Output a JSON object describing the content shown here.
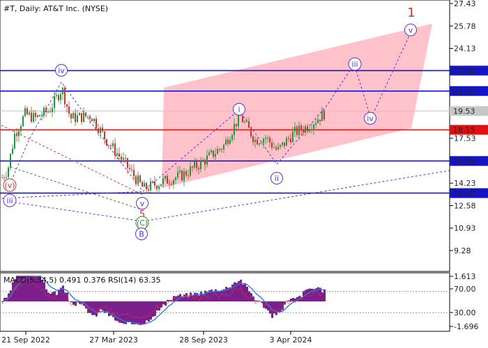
{
  "header": {
    "symbol_line": "#T, Daily:  AT&T Inc. (NYSE)",
    "indicator_line": "MACD(5,34,5) 0.491 0.376 RSI(14) 63.35"
  },
  "colors": {
    "bull_candle": "#1a9a3a",
    "bear_candle": "#c0392b",
    "channel_fill": "#ffb6c1",
    "level_blue": "#1515c8",
    "level_red": "#e01010",
    "wave_purple": "#5b2fd8",
    "wave_red": "#c0392b",
    "wave_green": "#2e8b2e",
    "macd_hist": "#7b1f8b",
    "macd_signal": "#2a7de1",
    "rsi_line": "#e03a3a"
  },
  "chart_data": {
    "type": "candlestick",
    "title": "#T, Daily:  AT&T Inc. (NYSE)",
    "price_axis": {
      "ticks": [
        "27.43",
        "25.78",
        "24.13",
        "17.53",
        "14.23",
        "12.58",
        "10.93",
        "9.28"
      ],
      "range": [
        7.8,
        28.2
      ]
    },
    "time_axis": {
      "ticks": [
        "21 Sep 2022",
        "27 Mar 2023",
        "28 Sep 2023",
        "3 Apr 2024"
      ]
    },
    "levels": [
      {
        "value": 22.5,
        "label": "22.50",
        "color": "blue"
      },
      {
        "value": 21.0,
        "label": "21.00",
        "color": "blue"
      },
      {
        "value": 19.53,
        "label": "19.53",
        "color": "gray"
      },
      {
        "value": 18.15,
        "label": "18.15",
        "color": "red"
      },
      {
        "value": 15.86,
        "label": "15.86",
        "color": "blue"
      },
      {
        "value": 13.5,
        "label": "13.50",
        "color": "blue"
      }
    ],
    "wave_labels": [
      {
        "text": "(v)",
        "color": "red"
      },
      {
        "text": "iii",
        "color": "purple"
      },
      {
        "text": "iv",
        "color": "purple"
      },
      {
        "text": "v",
        "color": "purple"
      },
      {
        "text": "5",
        "color": "red"
      },
      {
        "text": "(C)",
        "color": "green"
      },
      {
        "text": "B",
        "color": "purple"
      },
      {
        "text": "i",
        "color": "purple"
      },
      {
        "text": "ii",
        "color": "purple"
      },
      {
        "text": "iii",
        "color": "purple"
      },
      {
        "text": "iv",
        "color": "purple"
      },
      {
        "text": "v",
        "color": "purple"
      },
      {
        "text": "1",
        "color": "red"
      }
    ],
    "indicator_panel": {
      "name": "MACD(5,34,5) RSI(14)",
      "macd": 0.491,
      "signal": 0.376,
      "rsi": 63.35,
      "ticks": [
        "1.613",
        "70.00",
        "30.00",
        "-1.696"
      ]
    }
  }
}
